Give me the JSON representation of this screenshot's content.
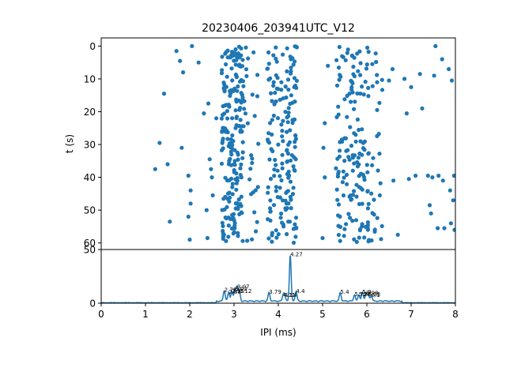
{
  "chart_data": [
    {
      "type": "scatter",
      "title": "20230406_203941UTC_V12",
      "ylabel": "t (s)",
      "xlabel": "",
      "xlim": [
        0,
        8
      ],
      "ylim": [
        62,
        -2.5
      ],
      "yticks": [
        0,
        10,
        20,
        30,
        40,
        50,
        60
      ],
      "y_inverted": true,
      "marker_color": "#1f77b4",
      "bands": [
        {
          "xmin": 2.72,
          "xmax": 3.22,
          "density": 0.95
        },
        {
          "xmin": 3.22,
          "xmax": 3.55,
          "density": 0.22
        },
        {
          "xmin": 3.75,
          "xmax": 4.12,
          "density": 0.45
        },
        {
          "xmin": 4.16,
          "xmax": 4.42,
          "density": 0.85
        },
        {
          "xmin": 5.3,
          "xmax": 6.05,
          "density": 0.55
        },
        {
          "xmin": 6.05,
          "xmax": 6.35,
          "density": 0.25
        }
      ],
      "sparse_points": [
        [
          1.22,
          37.5
        ],
        [
          1.32,
          29.5
        ],
        [
          1.42,
          14.5
        ],
        [
          1.5,
          36
        ],
        [
          1.55,
          53.5
        ],
        [
          1.7,
          1.5
        ],
        [
          1.78,
          4.5
        ],
        [
          1.85,
          8
        ],
        [
          1.82,
          31
        ],
        [
          1.97,
          39.5
        ],
        [
          2.02,
          44
        ],
        [
          2.05,
          0
        ],
        [
          2.02,
          48
        ],
        [
          1.97,
          52
        ],
        [
          2.0,
          59
        ],
        [
          2.2,
          5
        ],
        [
          2.32,
          20.5
        ],
        [
          2.38,
          50
        ],
        [
          2.42,
          17.5
        ],
        [
          2.45,
          34.5
        ],
        [
          2.4,
          58.5
        ],
        [
          2.48,
          37.5
        ],
        [
          2.5,
          40
        ],
        [
          2.52,
          45.5
        ],
        [
          2.6,
          22
        ],
        [
          5.02,
          31
        ],
        [
          5.05,
          23.5
        ],
        [
          5.0,
          58.5
        ],
        [
          5.12,
          6
        ],
        [
          5.05,
          40
        ],
        [
          6.5,
          10.5
        ],
        [
          6.58,
          7
        ],
        [
          6.6,
          41
        ],
        [
          6.7,
          57.5
        ],
        [
          6.85,
          10
        ],
        [
          6.9,
          20.5
        ],
        [
          6.95,
          40.5
        ],
        [
          7.0,
          12.5
        ],
        [
          7.1,
          39.5
        ],
        [
          7.2,
          8.5
        ],
        [
          7.25,
          19
        ],
        [
          7.38,
          39.5
        ],
        [
          7.42,
          48.5
        ],
        [
          7.45,
          51
        ],
        [
          7.48,
          40
        ],
        [
          7.55,
          0
        ],
        [
          7.52,
          9
        ],
        [
          7.6,
          55.5
        ],
        [
          7.62,
          39.5
        ],
        [
          7.7,
          4
        ],
        [
          7.72,
          41
        ],
        [
          7.75,
          55.5
        ],
        [
          7.85,
          7
        ],
        [
          7.88,
          44
        ],
        [
          7.9,
          54
        ],
        [
          7.92,
          10.5
        ],
        [
          7.95,
          47
        ],
        [
          7.97,
          39.5
        ],
        [
          7.98,
          56
        ]
      ]
    },
    {
      "type": "line",
      "xlabel": "IPI (ms)",
      "ylabel": "",
      "xlim": [
        0,
        8
      ],
      "ylim": [
        0,
        50
      ],
      "yticks": [
        0,
        50
      ],
      "xticks": [
        0,
        1,
        2,
        3,
        4,
        5,
        6,
        7,
        8
      ],
      "line_color": "#1f77b4",
      "peaks": [
        {
          "x": 2.78,
          "height": 10,
          "label": "2.78"
        },
        {
          "x": 2.88,
          "height": 8,
          "label": "2.88"
        },
        {
          "x": 2.95,
          "height": 9,
          "label": "2.95"
        },
        {
          "x": 3.02,
          "height": 11,
          "label": "3.02"
        },
        {
          "x": 3.07,
          "height": 13,
          "label": "3.07"
        },
        {
          "x": 3.12,
          "height": 9,
          "label": "3.12"
        },
        {
          "x": 3.79,
          "height": 8,
          "label": "3.79"
        },
        {
          "x": 4.11,
          "height": 5,
          "label": "4.11"
        },
        {
          "x": 4.14,
          "height": 5,
          "label": "4.14"
        },
        {
          "x": 4.27,
          "height": 43,
          "label": "4.27"
        },
        {
          "x": 4.4,
          "height": 9,
          "label": "4.4"
        },
        {
          "x": 5.4,
          "height": 8,
          "label": "5.4"
        },
        {
          "x": 5.72,
          "height": 6,
          "label": "5.72"
        },
        {
          "x": 5.82,
          "height": 6,
          "label": "5.82"
        },
        {
          "x": 5.9,
          "height": 8,
          "label": "5.9"
        },
        {
          "x": 5.98,
          "height": 7,
          "label": "5.98"
        },
        {
          "x": 6.03,
          "height": 6,
          "label": "6.03"
        },
        {
          "x": 6.1,
          "height": 5,
          "label": "6.1"
        }
      ]
    }
  ]
}
